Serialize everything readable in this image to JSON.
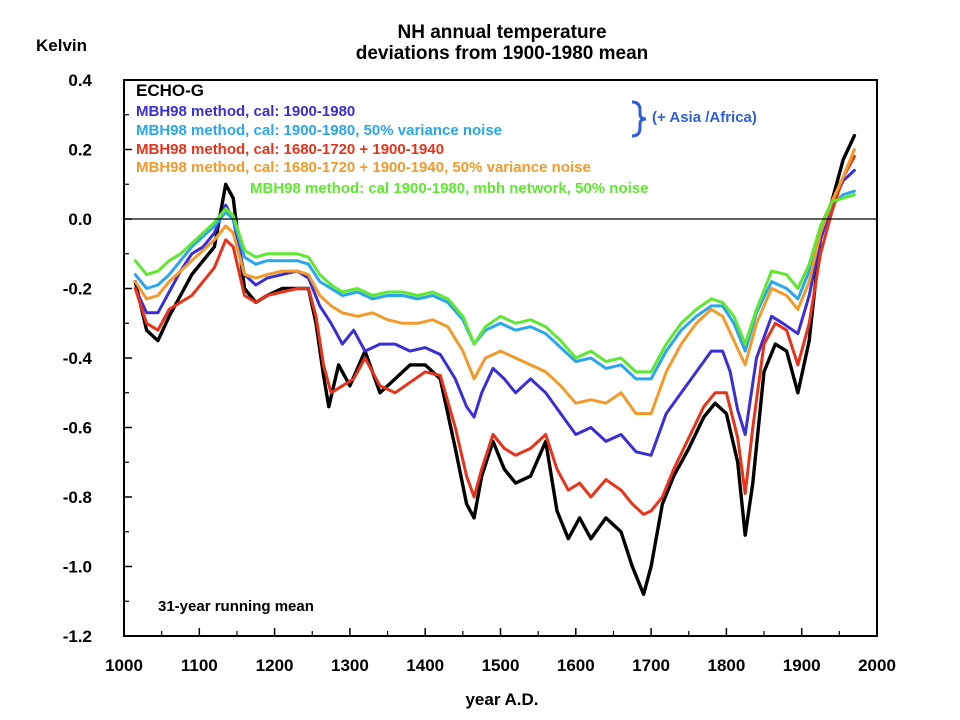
{
  "chart_data": {
    "type": "line",
    "title_line1": "NH annual temperature",
    "title_line2": "deviations from 1900-1980 mean",
    "ylabel": "Kelvin",
    "xlabel": "year A.D.",
    "xlim": [
      1000,
      2000
    ],
    "ylim": [
      -1.2,
      0.4
    ],
    "x_ticks": [
      "1000",
      "1100",
      "1200",
      "1300",
      "1400",
      "1500",
      "1600",
      "1700",
      "1800",
      "1900",
      "2000"
    ],
    "y_ticks": [
      "0.4",
      "0.2",
      "0.0",
      "-0.2",
      "-0.4",
      "-0.6",
      "-0.8",
      "-1.0",
      "-1.2"
    ],
    "zero_line": 0.0,
    "legend_header": "ECHO-G",
    "legend_position": "top-left",
    "bracket_note": "(+ Asia /Africa)",
    "annotation": "31-year running mean",
    "colors": {
      "echo_g": "#000000",
      "mbh_1900_1980": "#3a2fd6",
      "mbh_1900_1980_noise": "#2aa6ee",
      "mbh_1680_1720": "#e8331a",
      "mbh_1680_1720_noise": "#f39a2a",
      "mbh_network": "#5ee830",
      "bracket": "#2f5fd8"
    },
    "series": [
      {
        "name": "ECHO-G",
        "color_key": "echo_g",
        "show_in_legend": false,
        "x": [
          1015,
          1030,
          1045,
          1060,
          1075,
          1090,
          1105,
          1120,
          1135,
          1145,
          1160,
          1175,
          1190,
          1210,
          1230,
          1245,
          1255,
          1265,
          1272,
          1285,
          1300,
          1320,
          1340,
          1360,
          1380,
          1400,
          1420,
          1440,
          1455,
          1465,
          1475,
          1490,
          1505,
          1520,
          1540,
          1560,
          1575,
          1590,
          1605,
          1620,
          1640,
          1660,
          1675,
          1690,
          1700,
          1715,
          1730,
          1750,
          1770,
          1785,
          1800,
          1815,
          1825,
          1835,
          1850,
          1865,
          1880,
          1895,
          1910,
          1925,
          1940,
          1955,
          1970
        ],
        "values": [
          -0.18,
          -0.32,
          -0.35,
          -0.28,
          -0.22,
          -0.16,
          -0.12,
          -0.08,
          0.1,
          0.06,
          -0.2,
          -0.24,
          -0.22,
          -0.2,
          -0.2,
          -0.2,
          -0.3,
          -0.45,
          -0.54,
          -0.42,
          -0.48,
          -0.38,
          -0.5,
          -0.46,
          -0.42,
          -0.42,
          -0.46,
          -0.66,
          -0.82,
          -0.86,
          -0.74,
          -0.64,
          -0.72,
          -0.76,
          -0.74,
          -0.64,
          -0.84,
          -0.92,
          -0.86,
          -0.92,
          -0.86,
          -0.9,
          -1.0,
          -1.08,
          -1.0,
          -0.82,
          -0.74,
          -0.66,
          -0.57,
          -0.53,
          -0.56,
          -0.7,
          -0.91,
          -0.76,
          -0.44,
          -0.36,
          -0.38,
          -0.5,
          -0.35,
          -0.05,
          0.05,
          0.17,
          0.24
        ]
      },
      {
        "name": "MBH98 method, cal: 1900-1980",
        "color_key": "mbh_1900_1980",
        "x": [
          1015,
          1030,
          1045,
          1060,
          1075,
          1090,
          1105,
          1120,
          1135,
          1145,
          1160,
          1175,
          1190,
          1210,
          1230,
          1245,
          1260,
          1275,
          1290,
          1305,
          1320,
          1340,
          1360,
          1380,
          1400,
          1420,
          1440,
          1455,
          1465,
          1475,
          1490,
          1505,
          1520,
          1540,
          1560,
          1580,
          1600,
          1620,
          1640,
          1660,
          1680,
          1700,
          1720,
          1740,
          1760,
          1780,
          1795,
          1805,
          1815,
          1825,
          1840,
          1860,
          1875,
          1895,
          1910,
          1925,
          1940,
          1955,
          1970
        ],
        "values": [
          -0.2,
          -0.27,
          -0.27,
          -0.21,
          -0.15,
          -0.1,
          -0.08,
          -0.04,
          0.04,
          0.0,
          -0.16,
          -0.19,
          -0.17,
          -0.16,
          -0.15,
          -0.17,
          -0.25,
          -0.3,
          -0.36,
          -0.32,
          -0.38,
          -0.36,
          -0.36,
          -0.38,
          -0.37,
          -0.39,
          -0.46,
          -0.54,
          -0.57,
          -0.5,
          -0.43,
          -0.46,
          -0.5,
          -0.46,
          -0.5,
          -0.56,
          -0.62,
          -0.6,
          -0.64,
          -0.62,
          -0.67,
          -0.68,
          -0.56,
          -0.5,
          -0.44,
          -0.38,
          -0.38,
          -0.44,
          -0.55,
          -0.62,
          -0.4,
          -0.28,
          -0.3,
          -0.33,
          -0.22,
          -0.06,
          0.04,
          0.11,
          0.14
        ]
      },
      {
        "name": "MBH98 method, cal: 1900-1980, 50% variance noise",
        "color_key": "mbh_1900_1980_noise",
        "x": [
          1015,
          1030,
          1045,
          1060,
          1075,
          1090,
          1105,
          1120,
          1135,
          1145,
          1160,
          1175,
          1190,
          1210,
          1230,
          1245,
          1260,
          1275,
          1290,
          1310,
          1330,
          1350,
          1370,
          1390,
          1410,
          1430,
          1450,
          1465,
          1480,
          1500,
          1520,
          1540,
          1560,
          1580,
          1600,
          1620,
          1640,
          1660,
          1680,
          1700,
          1720,
          1740,
          1760,
          1780,
          1795,
          1810,
          1825,
          1840,
          1860,
          1880,
          1895,
          1910,
          1925,
          1940,
          1955,
          1970
        ],
        "values": [
          -0.16,
          -0.2,
          -0.19,
          -0.16,
          -0.12,
          -0.08,
          -0.05,
          -0.02,
          0.02,
          0.0,
          -0.11,
          -0.13,
          -0.12,
          -0.12,
          -0.12,
          -0.13,
          -0.18,
          -0.2,
          -0.22,
          -0.21,
          -0.23,
          -0.22,
          -0.22,
          -0.23,
          -0.22,
          -0.24,
          -0.29,
          -0.36,
          -0.32,
          -0.3,
          -0.32,
          -0.31,
          -0.33,
          -0.37,
          -0.41,
          -0.4,
          -0.43,
          -0.42,
          -0.46,
          -0.46,
          -0.38,
          -0.32,
          -0.28,
          -0.25,
          -0.25,
          -0.3,
          -0.38,
          -0.27,
          -0.18,
          -0.2,
          -0.23,
          -0.15,
          -0.03,
          0.04,
          0.07,
          0.08
        ]
      },
      {
        "name": "MBH98 method, cal: 1680-1720 + 1900-1940",
        "color_key": "mbh_1680_1720",
        "x": [
          1015,
          1030,
          1045,
          1060,
          1075,
          1090,
          1105,
          1120,
          1135,
          1145,
          1160,
          1175,
          1190,
          1210,
          1230,
          1245,
          1255,
          1265,
          1275,
          1290,
          1305,
          1320,
          1340,
          1360,
          1380,
          1400,
          1420,
          1440,
          1455,
          1465,
          1475,
          1490,
          1505,
          1520,
          1540,
          1560,
          1575,
          1590,
          1605,
          1620,
          1640,
          1660,
          1675,
          1690,
          1700,
          1715,
          1730,
          1750,
          1770,
          1785,
          1800,
          1815,
          1825,
          1835,
          1850,
          1865,
          1880,
          1895,
          1910,
          1925,
          1940,
          1955,
          1970
        ],
        "values": [
          -0.2,
          -0.3,
          -0.32,
          -0.26,
          -0.24,
          -0.22,
          -0.18,
          -0.14,
          -0.06,
          -0.08,
          -0.22,
          -0.24,
          -0.22,
          -0.21,
          -0.2,
          -0.2,
          -0.28,
          -0.42,
          -0.5,
          -0.48,
          -0.46,
          -0.4,
          -0.48,
          -0.5,
          -0.47,
          -0.44,
          -0.45,
          -0.6,
          -0.74,
          -0.8,
          -0.72,
          -0.62,
          -0.66,
          -0.68,
          -0.66,
          -0.62,
          -0.72,
          -0.78,
          -0.76,
          -0.8,
          -0.75,
          -0.78,
          -0.82,
          -0.85,
          -0.84,
          -0.8,
          -0.72,
          -0.63,
          -0.54,
          -0.5,
          -0.5,
          -0.63,
          -0.79,
          -0.6,
          -0.36,
          -0.3,
          -0.32,
          -0.42,
          -0.3,
          -0.1,
          0.02,
          0.12,
          0.18
        ]
      },
      {
        "name": "MBH98 method, cal: 1680-1720 + 1900-1940, 50% variance  noise",
        "color_key": "mbh_1680_1720_noise",
        "x": [
          1015,
          1030,
          1045,
          1060,
          1075,
          1090,
          1105,
          1120,
          1135,
          1145,
          1160,
          1175,
          1190,
          1210,
          1230,
          1245,
          1260,
          1275,
          1290,
          1310,
          1330,
          1350,
          1370,
          1390,
          1410,
          1430,
          1450,
          1465,
          1480,
          1500,
          1520,
          1540,
          1560,
          1580,
          1600,
          1620,
          1640,
          1660,
          1680,
          1700,
          1720,
          1740,
          1760,
          1780,
          1795,
          1810,
          1825,
          1840,
          1860,
          1880,
          1895,
          1910,
          1925,
          1940,
          1955,
          1970
        ],
        "values": [
          -0.18,
          -0.23,
          -0.22,
          -0.18,
          -0.15,
          -0.12,
          -0.09,
          -0.06,
          -0.02,
          -0.04,
          -0.16,
          -0.17,
          -0.16,
          -0.15,
          -0.15,
          -0.16,
          -0.22,
          -0.25,
          -0.27,
          -0.28,
          -0.27,
          -0.29,
          -0.3,
          -0.3,
          -0.29,
          -0.31,
          -0.38,
          -0.46,
          -0.4,
          -0.38,
          -0.4,
          -0.42,
          -0.44,
          -0.48,
          -0.53,
          -0.52,
          -0.53,
          -0.5,
          -0.56,
          -0.56,
          -0.44,
          -0.36,
          -0.3,
          -0.26,
          -0.28,
          -0.35,
          -0.42,
          -0.3,
          -0.2,
          -0.22,
          -0.26,
          -0.18,
          -0.04,
          0.05,
          0.12,
          0.2
        ]
      },
      {
        "name": "MBH98 method: cal 1900-1980, mbh network, 50% noise",
        "color_key": "mbh_network",
        "x": [
          1015,
          1030,
          1045,
          1060,
          1075,
          1090,
          1105,
          1120,
          1135,
          1145,
          1160,
          1175,
          1190,
          1210,
          1230,
          1245,
          1260,
          1275,
          1290,
          1310,
          1330,
          1350,
          1370,
          1390,
          1410,
          1430,
          1450,
          1465,
          1480,
          1500,
          1520,
          1540,
          1560,
          1580,
          1600,
          1620,
          1640,
          1660,
          1680,
          1700,
          1720,
          1740,
          1760,
          1780,
          1795,
          1810,
          1825,
          1840,
          1860,
          1880,
          1895,
          1910,
          1925,
          1940,
          1955,
          1970
        ],
        "values": [
          -0.12,
          -0.16,
          -0.15,
          -0.12,
          -0.1,
          -0.07,
          -0.04,
          -0.01,
          0.03,
          0.01,
          -0.09,
          -0.11,
          -0.1,
          -0.1,
          -0.1,
          -0.11,
          -0.16,
          -0.19,
          -0.21,
          -0.2,
          -0.22,
          -0.21,
          -0.21,
          -0.22,
          -0.21,
          -0.23,
          -0.28,
          -0.36,
          -0.31,
          -0.28,
          -0.3,
          -0.29,
          -0.31,
          -0.35,
          -0.4,
          -0.38,
          -0.41,
          -0.4,
          -0.44,
          -0.44,
          -0.36,
          -0.3,
          -0.26,
          -0.23,
          -0.24,
          -0.28,
          -0.36,
          -0.26,
          -0.15,
          -0.16,
          -0.2,
          -0.13,
          -0.02,
          0.05,
          0.06,
          0.07
        ]
      }
    ]
  }
}
